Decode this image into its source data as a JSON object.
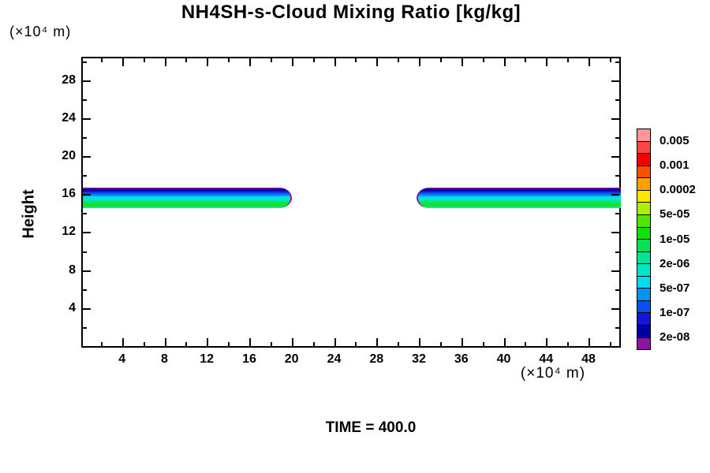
{
  "title": "NH4SH-s-Cloud Mixing Ratio [kg/kg]",
  "time_label": "TIME = 400.0",
  "axes": {
    "x": {
      "unit_label": "(×10⁴ m)",
      "min": 0.3,
      "max": 50.9,
      "major_ticks": [
        4,
        8,
        12,
        16,
        20,
        24,
        28,
        32,
        36,
        40,
        44,
        48
      ],
      "minor_ticks": [
        2,
        6,
        10,
        14,
        18,
        22,
        26,
        30,
        34,
        38,
        42,
        46,
        50
      ]
    },
    "y": {
      "label": "Height",
      "unit_label": "(×10⁴ m)",
      "min": 0,
      "max": 30.3,
      "major_ticks": [
        4,
        8,
        12,
        16,
        20,
        24,
        28
      ],
      "minor_ticks": [
        2,
        6,
        10,
        14,
        18,
        22,
        26,
        30
      ]
    }
  },
  "legend": {
    "labels": [
      "0.005",
      "0.001",
      "0.0002",
      "5e-05",
      "1e-05",
      "2e-06",
      "5e-07",
      "1e-07",
      "2e-08"
    ],
    "colors_top_to_bottom": [
      "#FF9696",
      "#FF4646",
      "#F50000",
      "#FF5000",
      "#FFA000",
      "#FFE600",
      "#AAF000",
      "#50E600",
      "#0FE00F",
      "#0AE05A",
      "#00E696",
      "#00E6C8",
      "#00DCF0",
      "#0096F0",
      "#0A50F0",
      "#1414DC",
      "#0000A0",
      "#8C14A0"
    ]
  },
  "chart_data": {
    "type": "heatmap",
    "subtype": "filled-contour",
    "title": "NH4SH-s-Cloud Mixing Ratio [kg/kg]",
    "xlabel": "(×10⁴ m)",
    "ylabel": "Height (×10⁴ m)",
    "xlim": [
      0.3,
      50.9
    ],
    "ylim": [
      0,
      30.3
    ],
    "time": 400.0,
    "grid": false,
    "legend_position": "right",
    "contour_levels": [
      2e-08,
      5e-08,
      1e-07,
      2e-07,
      5e-07,
      1e-06,
      2e-06,
      5e-06,
      1e-05,
      2e-05,
      5e-05,
      0.0001,
      0.0002,
      0.0005,
      0.001,
      0.002,
      0.005
    ],
    "bands": [
      {
        "name": "left-cloud-band",
        "x_range": [
          0.3,
          19.9
        ],
        "y_range": [
          14.55,
          16.65
        ],
        "tip": "right"
      },
      {
        "name": "right-cloud-band",
        "x_range": [
          31.8,
          50.9
        ],
        "y_range": [
          14.55,
          16.65
        ],
        "tip": "left"
      }
    ],
    "band_layers_top_to_bottom": [
      {
        "level": "2e-08 to 5e-08",
        "color": "#8C14A0",
        "from": 0.0,
        "to": 0.06
      },
      {
        "level": "5e-08 to 1e-07",
        "color": "#0000A0",
        "from": 0.06,
        "to": 0.15
      },
      {
        "level": "1e-07 to 2e-07",
        "color": "#1414DC",
        "from": 0.15,
        "to": 0.24
      },
      {
        "level": "2e-07 to 5e-07",
        "color": "#0A50F0",
        "from": 0.24,
        "to": 0.33
      },
      {
        "level": "5e-07 to 1e-06",
        "color": "#0096F0",
        "from": 0.33,
        "to": 0.42
      },
      {
        "level": "1e-06 to 2e-06",
        "color": "#00DCF0",
        "from": 0.42,
        "to": 0.52
      },
      {
        "level": "2e-06 to 5e-06",
        "color": "#00E6C8",
        "from": 0.52,
        "to": 0.61
      },
      {
        "level": "5e-06 to 1e-05",
        "color": "#00E696",
        "from": 0.61,
        "to": 0.7
      },
      {
        "level": "1e-05 to 2e-05",
        "color": "#0AE05A",
        "from": 0.7,
        "to": 0.79
      },
      {
        "level": "2e-05 to 5e-05",
        "color": "#14E614",
        "from": 0.79,
        "to": 0.93
      },
      {
        "level": "2e-06 to 5e-06 (base edge)",
        "color": "#00E6C8",
        "from": 0.93,
        "to": 1.0
      }
    ]
  }
}
